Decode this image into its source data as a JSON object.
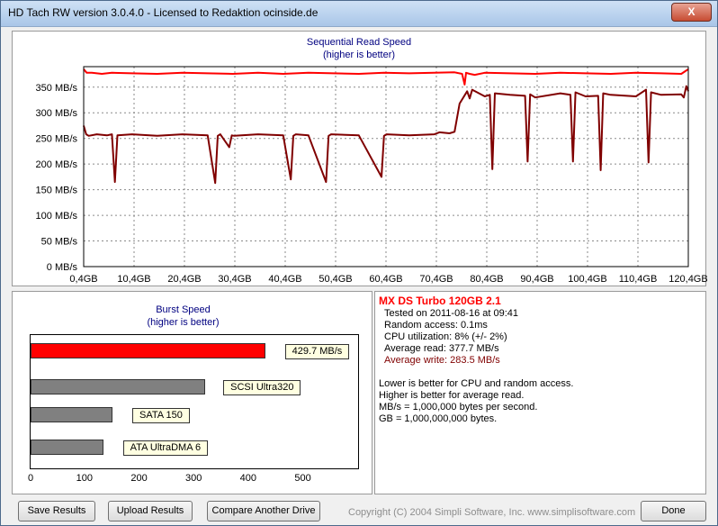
{
  "window": {
    "title": "HD Tach RW version 3.0.4.0 - Licensed to Redaktion ocinside.de",
    "close_label": "X"
  },
  "seq_chart": {
    "title": "Sequential Read Speed",
    "subtitle": "(higher is better)"
  },
  "chart_data": [
    {
      "type": "line",
      "title": "Sequential Read Speed",
      "subtitle": "(higher is better)",
      "x_tick_labels": [
        "0,4GB",
        "10,4GB",
        "20,4GB",
        "30,4GB",
        "40,4GB",
        "50,4GB",
        "60,4GB",
        "70,4GB",
        "80,4GB",
        "90,4GB",
        "100,4GB",
        "110,4GB",
        "120,4GB"
      ],
      "y_tick_labels": [
        "350 MB/s",
        "300 MB/s",
        "250 MB/s",
        "200 MB/s",
        "150 MB/s",
        "100 MB/s",
        "50 MB/s",
        "0 MB/s"
      ],
      "xlim": [
        0.4,
        120.4
      ],
      "ylim": [
        0,
        390
      ],
      "grid": true,
      "series": [
        {
          "color": "#ff0000",
          "x": [
            0.4,
            1,
            2,
            4,
            6,
            10,
            15,
            20,
            25,
            30,
            35,
            40,
            45,
            50,
            55,
            60,
            65,
            70,
            74,
            75.5,
            76,
            76.3,
            77,
            78,
            80,
            85,
            90,
            95,
            100,
            105,
            110,
            115,
            119,
            120.4
          ],
          "y": [
            385,
            378,
            378,
            376,
            378,
            377,
            376,
            378,
            377,
            376,
            378,
            376,
            378,
            377,
            376,
            378,
            377,
            378,
            379,
            376,
            355,
            378,
            376,
            374,
            378,
            377,
            376,
            378,
            377,
            376,
            378,
            377,
            376,
            385
          ]
        },
        {
          "color": "#800000",
          "x": [
            0.4,
            0.9,
            1.4,
            3,
            5,
            6,
            6.6,
            7.1,
            10,
            15,
            20,
            25,
            26.5,
            27,
            27.5,
            29.3,
            29.8,
            30.3,
            35,
            40,
            41.5,
            42,
            42.5,
            45,
            48.5,
            49,
            49.5,
            55,
            59.5,
            60,
            60.5,
            65,
            70,
            71,
            73,
            74,
            75,
            76.5,
            77,
            77.5,
            80,
            81,
            81.5,
            82,
            85,
            88,
            88.5,
            89,
            90,
            95,
            97,
            97.5,
            98,
            100,
            102.5,
            103,
            103.5,
            105,
            110,
            112,
            112.5,
            113,
            115,
            119,
            119.5,
            120,
            120.4
          ],
          "y": [
            275,
            258,
            255,
            258,
            256,
            258,
            165,
            256,
            258,
            255,
            258,
            256,
            163,
            255,
            258,
            233,
            256,
            255,
            258,
            256,
            170,
            255,
            258,
            256,
            165,
            255,
            258,
            256,
            175,
            255,
            258,
            256,
            258,
            262,
            260,
            263,
            318,
            342,
            328,
            345,
            332,
            335,
            190,
            338,
            335,
            333,
            205,
            336,
            330,
            338,
            335,
            205,
            340,
            332,
            333,
            188,
            338,
            335,
            332,
            345,
            203,
            340,
            335,
            336,
            330,
            352,
            342
          ]
        }
      ]
    },
    {
      "type": "bar",
      "title": "Burst Speed",
      "subtitle": "(higher is better)",
      "orientation": "horizontal",
      "categories": [
        "429.7 MB/s",
        "SCSI Ultra320",
        "SATA 150",
        "ATA UltraDMA 6"
      ],
      "values": [
        429.7,
        320,
        150,
        133
      ],
      "colors": [
        "#ff0000",
        "#808080",
        "#808080",
        "#808080"
      ],
      "xlim": [
        0,
        600
      ],
      "x_tick_labels": [
        "0",
        "100",
        "200",
        "300",
        "400",
        "500"
      ]
    }
  ],
  "burst_chart": {
    "title": "Burst Speed",
    "subtitle": "(higher is better)",
    "bar_labels": [
      "429.7 MB/s",
      "SCSI Ultra320",
      "SATA 150",
      "ATA UltraDMA 6"
    ]
  },
  "info": {
    "drive_name": "MX DS Turbo 120GB 2.1",
    "tested": "Tested on 2011-08-16 at 09:41",
    "random_access": "Random access: 0.1ms",
    "cpu": "CPU utilization: 8% (+/- 2%)",
    "avg_read": "Average read: 377.7 MB/s",
    "avg_write": "Average write: 283.5 MB/s",
    "notes": [
      "Lower is better for CPU and random access.",
      "Higher is better for average read.",
      "MB/s = 1,000,000 bytes per second.",
      "GB = 1,000,000,000 bytes."
    ],
    "colors": {
      "drive_name": "#ff0000",
      "avg_write": "#800000"
    }
  },
  "buttons": {
    "save": "Save Results",
    "upload": "Upload Results",
    "compare": "Compare Another Drive",
    "done": "Done"
  },
  "footer": {
    "copyright": "Copyright (C) 2004 Simpli Software, Inc. www.simplisoftware.com"
  }
}
